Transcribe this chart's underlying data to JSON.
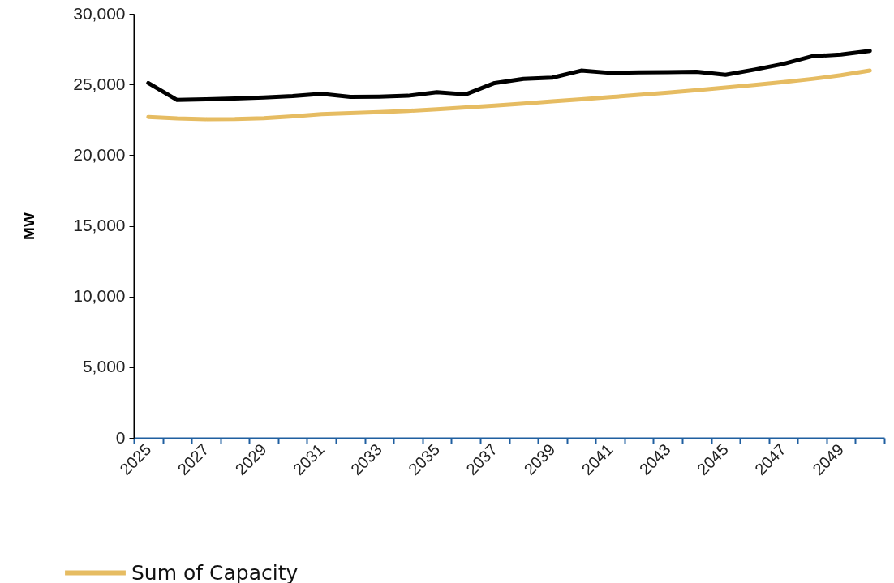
{
  "chart_data": {
    "type": "line",
    "ylabel": "MW",
    "categories": [
      "2025",
      null,
      "2027",
      null,
      "2029",
      null,
      "2031",
      null,
      "2033",
      null,
      "2035",
      null,
      "2037",
      null,
      "2039",
      null,
      "2041",
      null,
      "2043",
      null,
      "2045",
      null,
      "2047",
      null,
      "2049",
      null
    ],
    "series": [
      {
        "color": "#000000",
        "values": [
          25100,
          23900,
          23950,
          24000,
          24080,
          24180,
          24330,
          24120,
          24140,
          24200,
          24450,
          24300,
          25100,
          25400,
          25480,
          25980,
          25820,
          25850,
          25870,
          25900,
          25680,
          26050,
          26450,
          27000,
          27120,
          27380
        ]
      },
      {
        "name": "Sum of Capacity",
        "color": "#e6bc62",
        "values": [
          22700,
          22600,
          22550,
          22560,
          22620,
          22750,
          22900,
          22970,
          23040,
          23130,
          23250,
          23370,
          23500,
          23650,
          23800,
          23950,
          24100,
          24260,
          24420,
          24590,
          24780,
          24970,
          25170,
          25390,
          25650,
          25980
        ]
      }
    ],
    "ylim": [
      0,
      30000
    ],
    "yticks": [
      {
        "value": 0,
        "label": "0"
      },
      {
        "value": 5000,
        "label": "5,000"
      },
      {
        "value": 10000,
        "label": "10,000"
      },
      {
        "value": 15000,
        "label": "15,000"
      },
      {
        "value": 20000,
        "label": "20,000"
      },
      {
        "value": 25000,
        "label": "25,000"
      },
      {
        "value": 30000,
        "label": "30,000"
      }
    ],
    "grid": false,
    "legend": "bottom left"
  }
}
